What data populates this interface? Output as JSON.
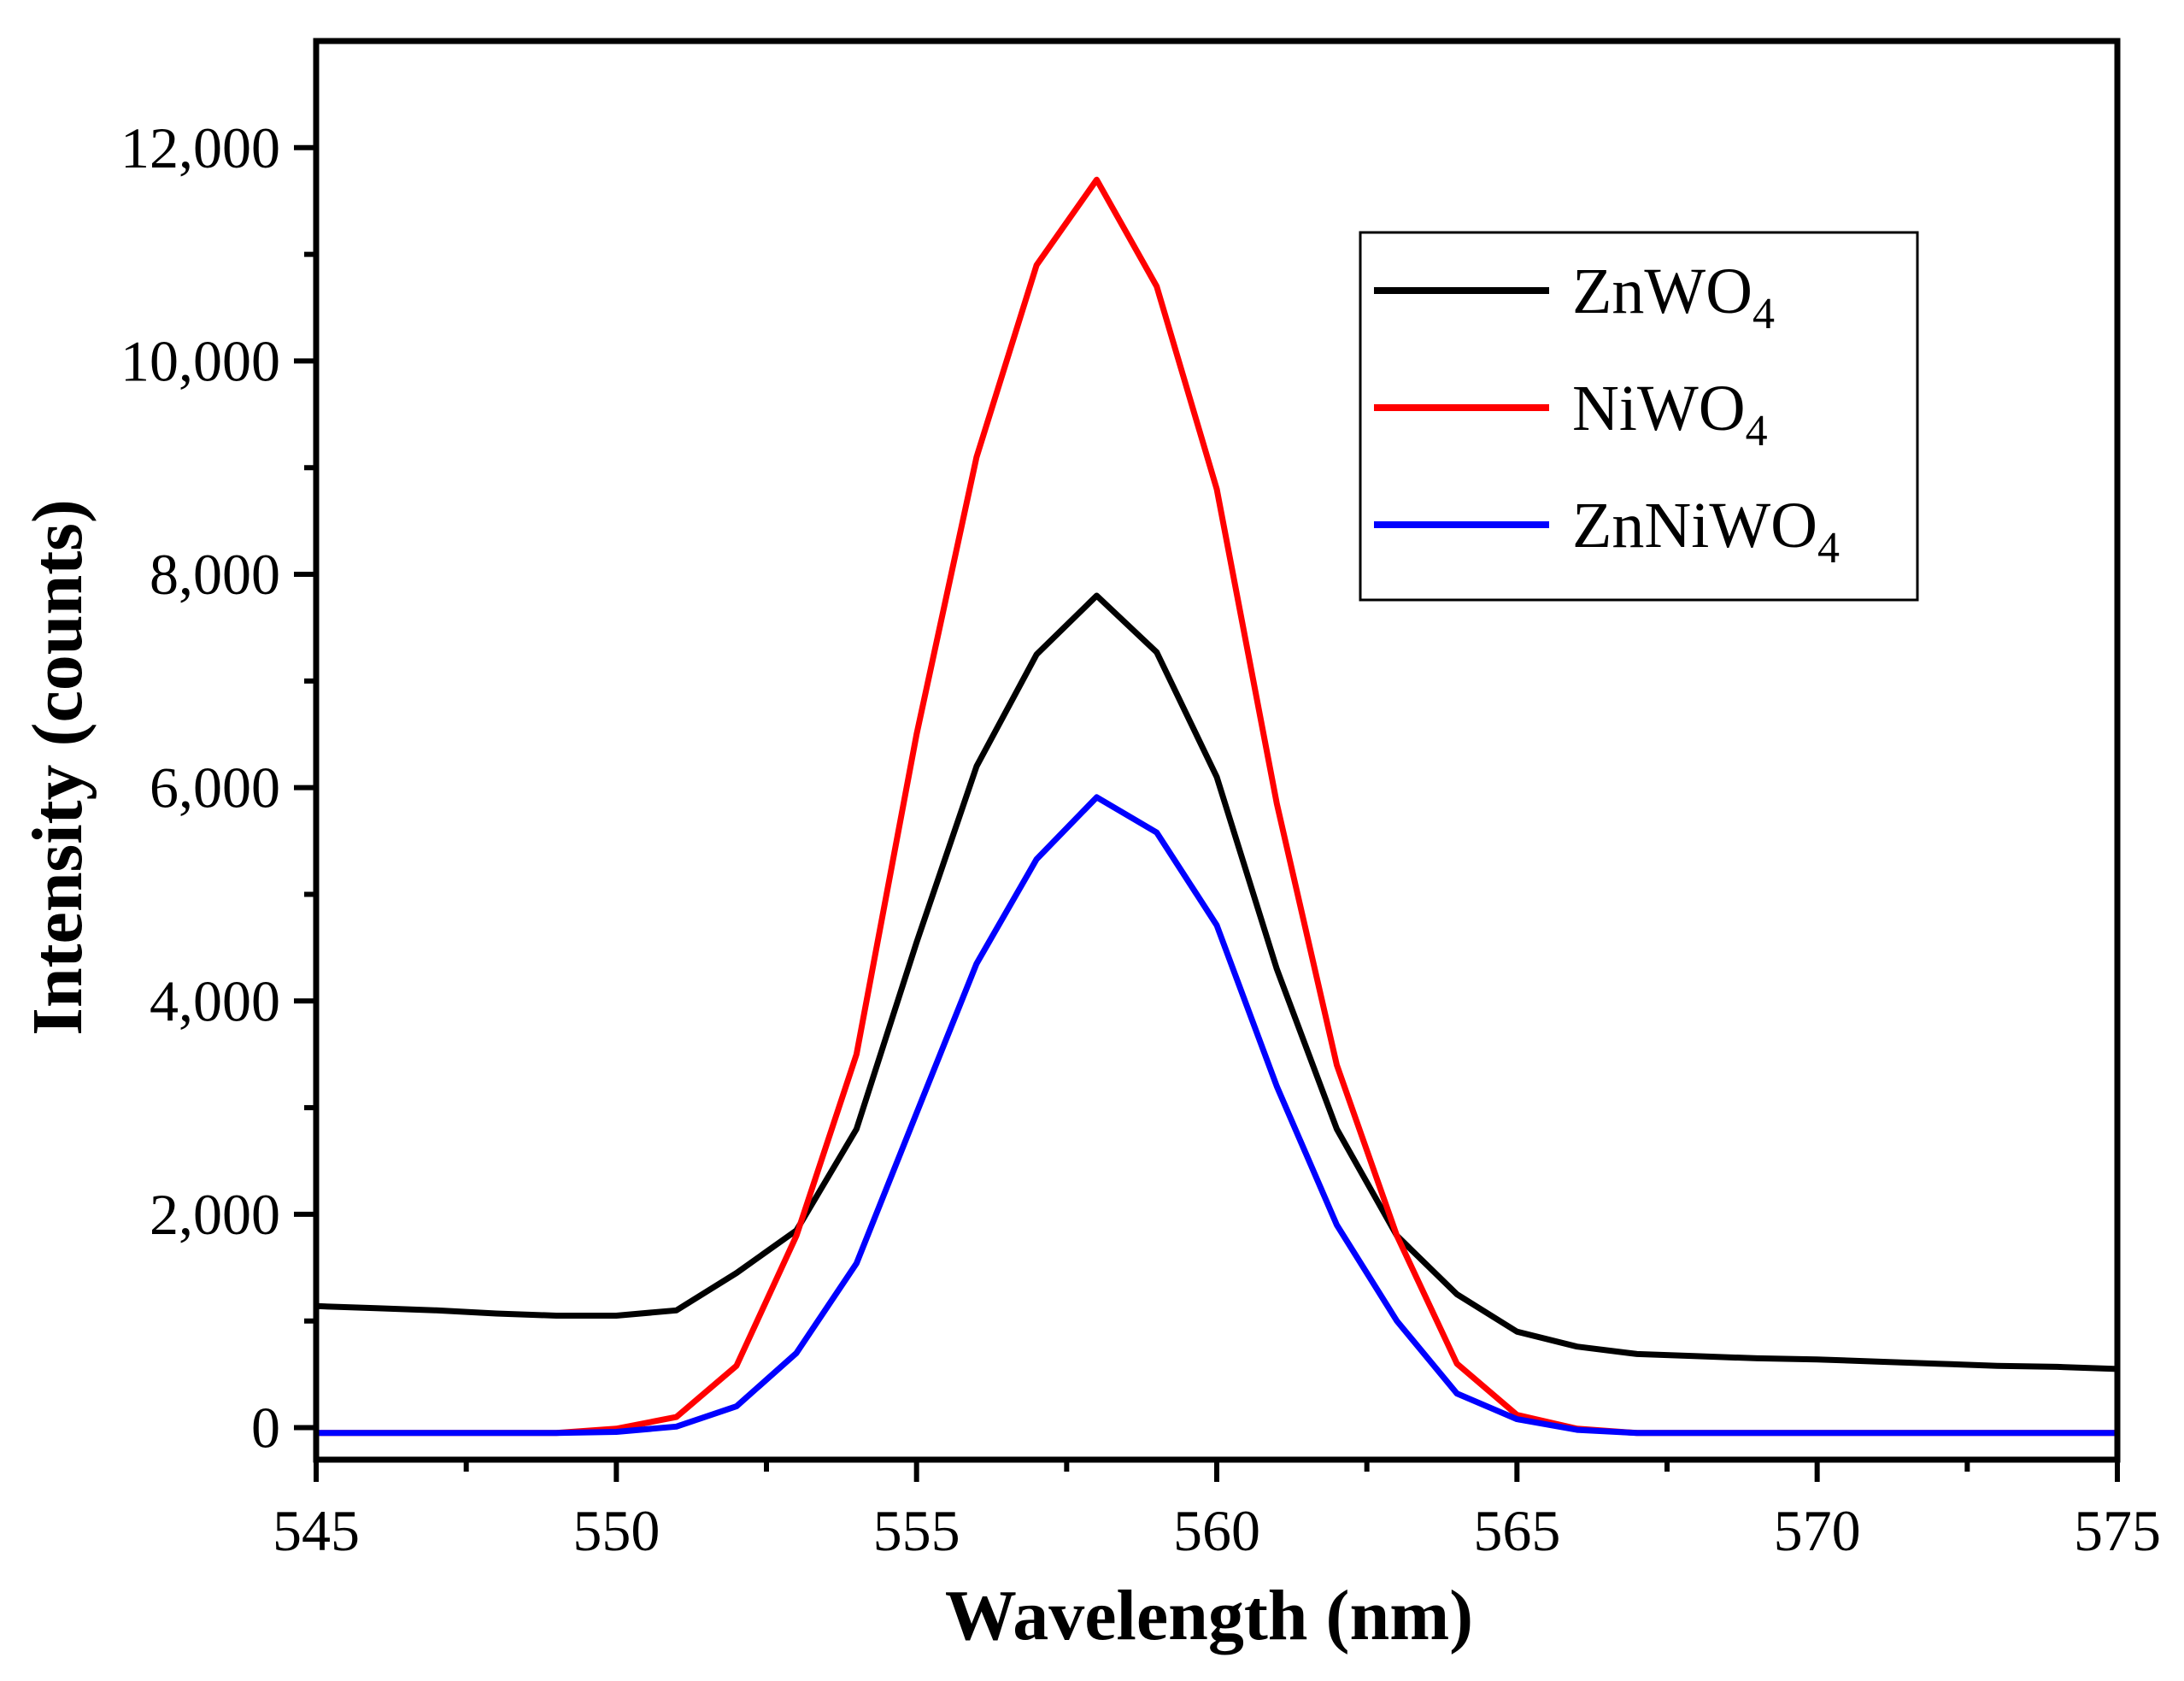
{
  "chart_data": {
    "type": "line",
    "title": "",
    "xlabel": "Wavelength (nm)",
    "ylabel": "Intensity (counts)",
    "xlim": [
      545,
      575
    ],
    "ylim": [
      -300,
      13000
    ],
    "xticks": [
      545,
      550,
      555,
      560,
      565,
      570,
      575
    ],
    "xtick_labels": [
      "545",
      "550",
      "555",
      "560",
      "565",
      "570",
      "575"
    ],
    "yticks": [
      0,
      2000,
      4000,
      6000,
      8000,
      10000,
      12000
    ],
    "ytick_labels": [
      "0",
      "2,000",
      "4,000",
      "6,000",
      "8,000",
      "10,000",
      "12,000"
    ],
    "legend_position": "top-right",
    "x": [
      545,
      546,
      547,
      548,
      549,
      550,
      551,
      552,
      553,
      554,
      555,
      556,
      557,
      558,
      559,
      560,
      561,
      562,
      563,
      564,
      565,
      566,
      567,
      568,
      569,
      570,
      571,
      572,
      573,
      574,
      575
    ],
    "series": [
      {
        "name": "ZnWO4",
        "label_main": "ZnWO",
        "label_sub": "4",
        "color": "#000000",
        "values": [
          1140,
          1120,
          1100,
          1070,
          1050,
          1050,
          1100,
          1450,
          1850,
          2800,
          4550,
          6200,
          7250,
          7800,
          7270,
          6100,
          4300,
          2800,
          1800,
          1250,
          900,
          760,
          690,
          670,
          650,
          640,
          620,
          600,
          580,
          570,
          550
        ]
      },
      {
        "name": "NiWO4",
        "label_main": "NiWO",
        "label_sub": "4",
        "color": "#ff0000",
        "values": [
          -50,
          -50,
          -50,
          -50,
          -50,
          -10,
          100,
          580,
          1800,
          3500,
          6500,
          9100,
          10900,
          11700,
          10700,
          8800,
          5850,
          3400,
          1800,
          600,
          120,
          -10,
          -50,
          -50,
          -50,
          -50,
          -50,
          -50,
          -50,
          -50,
          -50
        ]
      },
      {
        "name": "ZnNiWO4",
        "label_main": "ZnNiWO",
        "label_sub": "4",
        "color": "#0000ff",
        "values": [
          -50,
          -50,
          -50,
          -50,
          -50,
          -40,
          10,
          200,
          700,
          1540,
          2950,
          4350,
          5330,
          5910,
          5580,
          4710,
          3200,
          1900,
          1000,
          320,
          80,
          -20,
          -50,
          -50,
          -50,
          -50,
          -50,
          -50,
          -50,
          -50,
          -50
        ]
      }
    ]
  }
}
